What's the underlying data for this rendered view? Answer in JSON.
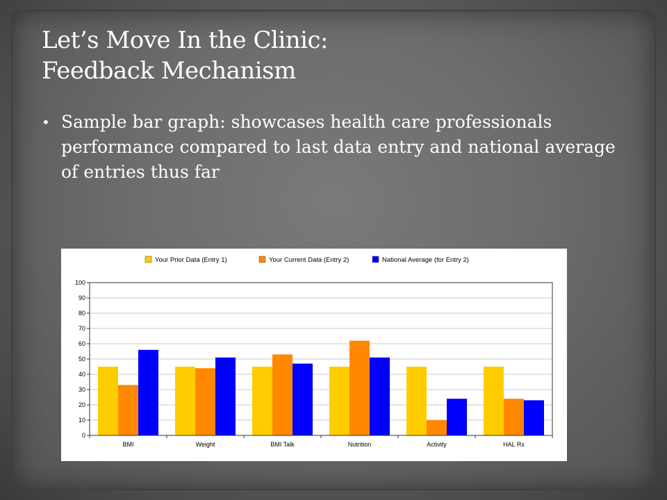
{
  "slide": {
    "title_line1": "Let’s Move In the Clinic:",
    "title_line2": "Feedback Mechanism",
    "bullet": "Sample bar graph: showcases health care professionals performance compared to last data entry and national average of entries thus far"
  },
  "chart_data": {
    "type": "bar",
    "categories": [
      "BMI",
      "Weight",
      "BMI Talk",
      "Nutrition",
      "Activity",
      "HAL Rx"
    ],
    "series": [
      {
        "name": "Your Prior Data (Entry 1)",
        "values": [
          45,
          45,
          45,
          45,
          45,
          45
        ],
        "color": "#FFCC00"
      },
      {
        "name": "Your Current Data (Entry 2)",
        "values": [
          33,
          44,
          53,
          62,
          10,
          24
        ],
        "color": "#FF8800"
      },
      {
        "name": "National Average (for Entry 2)",
        "values": [
          56,
          51,
          47,
          51,
          24,
          23
        ],
        "color": "#0000FF"
      }
    ],
    "ylim": [
      0,
      100
    ],
    "yticks": [
      0,
      10,
      20,
      30,
      40,
      50,
      60,
      70,
      80,
      90,
      100
    ],
    "grid": true,
    "legend": "top-center",
    "title": "",
    "xlabel": "",
    "ylabel": ""
  }
}
